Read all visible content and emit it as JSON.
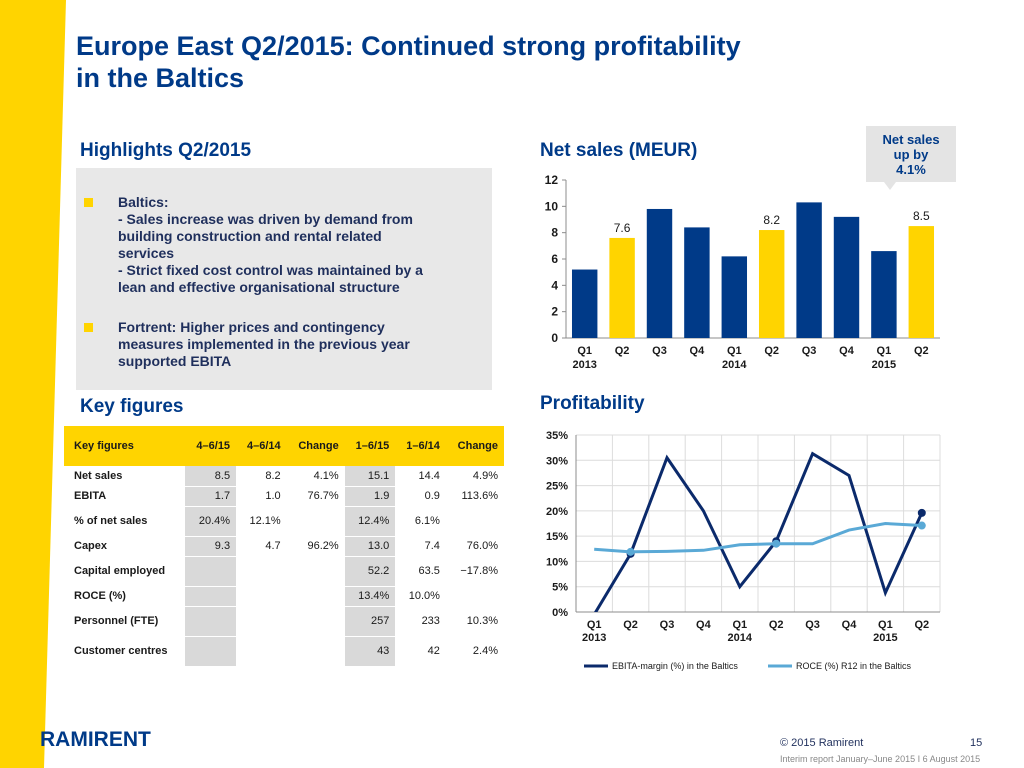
{
  "title_line1": "Europe East Q2/2015: Continued strong profitability",
  "title_line2": "in the Baltics",
  "highlights": {
    "heading": "Highlights Q2/2015",
    "bullet1_lines": [
      "Baltics:",
      "- Sales increase was driven by demand from",
      "building construction and rental related",
      "services",
      "- Strict fixed cost control was maintained by a",
      "lean and effective organisational structure"
    ],
    "bullet2_lines": [
      "Fortrent: Higher prices and contingency",
      "measures implemented in the previous year",
      "supported EBITA"
    ]
  },
  "key_figures": {
    "heading": "Key figures",
    "columns": [
      "Key figures",
      "4–6/15",
      "4–6/14",
      "Change",
      "1–6/15",
      "1–6/14",
      "Change"
    ],
    "rows": [
      {
        "label": "Net sales",
        "cells": [
          "8.5",
          "8.2",
          "4.1%",
          "15.1",
          "14.4",
          "4.9%"
        ]
      },
      {
        "label": "EBITA",
        "cells": [
          "1.7",
          "1.0",
          "76.7%",
          "1.9",
          "0.9",
          "113.6%"
        ]
      },
      {
        "label": "% of net sales",
        "cells": [
          "20.4%",
          "12.1%",
          "",
          "12.4%",
          "6.1%",
          ""
        ]
      },
      {
        "label": "Capex",
        "cells": [
          "9.3",
          "4.7",
          "96.2%",
          "13.0",
          "7.4",
          "76.0%"
        ]
      },
      {
        "label": "Capital employed",
        "cells": [
          "",
          "",
          "",
          "52.2",
          "63.5",
          "−17.8%"
        ]
      },
      {
        "label": "ROCE (%)",
        "cells": [
          "",
          "",
          "",
          "13.4%",
          "10.0%",
          ""
        ]
      },
      {
        "label": "Personnel (FTE)",
        "cells": [
          "",
          "",
          "",
          "257",
          "233",
          "10.3%"
        ]
      },
      {
        "label": "Customer centres",
        "cells": [
          "",
          "",
          "",
          "43",
          "42",
          "2.4%"
        ]
      }
    ]
  },
  "callout": {
    "lines": [
      "Net sales",
      "up by",
      "4.1%"
    ]
  },
  "chart_data": [
    {
      "type": "bar",
      "title": "Net sales (MEUR)",
      "categories": [
        "Q1 2013",
        "Q2 2013",
        "Q3 2013",
        "Q4 2013",
        "Q1 2014",
        "Q2 2014",
        "Q3 2014",
        "Q4 2014",
        "Q1 2015",
        "Q2 2015"
      ],
      "tick_labels": [
        [
          "Q1",
          "2013"
        ],
        [
          "Q2",
          ""
        ],
        [
          "Q3",
          ""
        ],
        [
          "Q4",
          ""
        ],
        [
          "Q1",
          "2014"
        ],
        [
          "Q2",
          ""
        ],
        [
          "Q3",
          ""
        ],
        [
          "Q4",
          ""
        ],
        [
          "Q1",
          "2015"
        ],
        [
          "Q2",
          ""
        ]
      ],
      "values": [
        5.2,
        7.6,
        9.8,
        8.4,
        6.2,
        8.2,
        10.3,
        9.2,
        6.6,
        8.5
      ],
      "highlight": [
        false,
        true,
        false,
        false,
        false,
        true,
        false,
        false,
        false,
        true
      ],
      "data_labels": [
        "",
        "7.6",
        "",
        "",
        "",
        "8.2",
        "",
        "",
        "",
        "8.5"
      ],
      "ylim": [
        0,
        12
      ],
      "yticks": [
        0,
        2,
        4,
        6,
        8,
        10,
        12
      ],
      "colors": {
        "normal": "#003a88",
        "highlight": "#ffd400"
      }
    },
    {
      "type": "line",
      "title": "Profitability",
      "categories": [
        "Q1 2013",
        "Q2 2013",
        "Q3 2013",
        "Q4 2013",
        "Q1 2014",
        "Q2 2014",
        "Q3 2014",
        "Q4 2014",
        "Q1 2015",
        "Q2 2015"
      ],
      "tick_labels": [
        [
          "Q1",
          "2013"
        ],
        [
          "Q2",
          ""
        ],
        [
          "Q3",
          ""
        ],
        [
          "Q4",
          ""
        ],
        [
          "Q1",
          "2014"
        ],
        [
          "Q2",
          ""
        ],
        [
          "Q3",
          ""
        ],
        [
          "Q4",
          ""
        ],
        [
          "Q1",
          "2015"
        ],
        [
          "Q2",
          ""
        ]
      ],
      "series": [
        {
          "name": "EBITA-margin (%) in the Baltics",
          "values": [
            -0.5,
            11.5,
            30.5,
            20.0,
            5.0,
            14.0,
            31.3,
            27.0,
            3.8,
            19.6
          ],
          "color": "#0b2a6b",
          "marker_points": [
            1,
            5,
            9
          ]
        },
        {
          "name": "ROCE (%) R12 in the Baltics",
          "values": [
            12.4,
            11.9,
            12.0,
            12.2,
            13.3,
            13.5,
            13.5,
            16.2,
            17.5,
            17.1
          ],
          "color": "#5aa9d6",
          "marker_points": [
            1,
            5,
            9
          ]
        }
      ],
      "ylim": [
        0,
        35
      ],
      "ytick_labels": [
        "0%",
        "5%",
        "10%",
        "15%",
        "20%",
        "25%",
        "30%",
        "35%"
      ],
      "yticks": [
        0,
        5,
        10,
        15,
        20,
        25,
        30,
        35
      ],
      "legend_position": "bottom"
    }
  ],
  "footer": {
    "logo": "RAMIRENT",
    "copyright": "© 2015 Ramirent",
    "page": "15",
    "report": "Interim report January–June 2015  I 6 August 2015"
  }
}
